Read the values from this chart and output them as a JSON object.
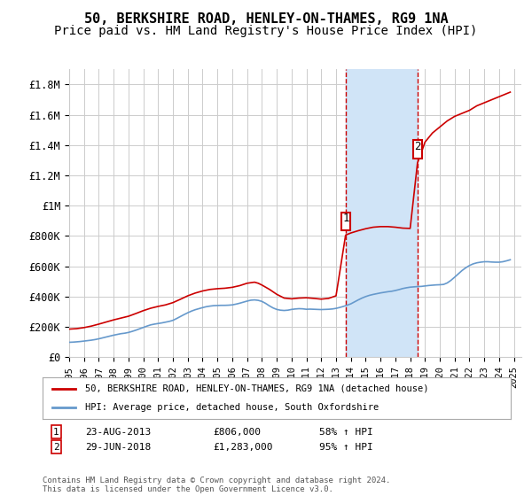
{
  "title": "50, BERKSHIRE ROAD, HENLEY-ON-THAMES, RG9 1NA",
  "subtitle": "Price paid vs. HM Land Registry's House Price Index (HPI)",
  "xlabel": "",
  "ylabel": "",
  "ylim": [
    0,
    1900000
  ],
  "xlim_start": 1995.0,
  "xlim_end": 2025.5,
  "yticks": [
    0,
    200000,
    400000,
    600000,
    800000,
    1000000,
    1200000,
    1400000,
    1600000,
    1800000
  ],
  "ytick_labels": [
    "£0",
    "£200K",
    "£400K",
    "£600K",
    "£800K",
    "£1M",
    "£1.2M",
    "£1.4M",
    "£1.6M",
    "£1.8M"
  ],
  "xticks": [
    1995,
    1996,
    1997,
    1998,
    1999,
    2000,
    2001,
    2002,
    2003,
    2004,
    2005,
    2006,
    2007,
    2008,
    2009,
    2010,
    2011,
    2012,
    2013,
    2014,
    2015,
    2016,
    2017,
    2018,
    2019,
    2020,
    2021,
    2022,
    2023,
    2024,
    2025
  ],
  "sale1_x": 2013.645,
  "sale1_y": 806000,
  "sale1_label": "1",
  "sale1_date": "23-AUG-2013",
  "sale1_price": "£806,000",
  "sale1_hpi": "58% ↑ HPI",
  "sale2_x": 2018.494,
  "sale2_y": 1283000,
  "sale2_label": "2",
  "sale2_date": "29-JUN-2018",
  "sale2_price": "£1,283,000",
  "sale2_hpi": "95% ↑ HPI",
  "red_line_color": "#cc0000",
  "blue_line_color": "#6699cc",
  "shade_color": "#d0e4f7",
  "grid_color": "#cccccc",
  "background_color": "#ffffff",
  "legend_line1": "50, BERKSHIRE ROAD, HENLEY-ON-THAMES, RG9 1NA (detached house)",
  "legend_line2": "HPI: Average price, detached house, South Oxfordshire",
  "footer": "Contains HM Land Registry data © Crown copyright and database right 2024.\nThis data is licensed under the Open Government Licence v3.0.",
  "hpi_years": [
    1995.0,
    1995.25,
    1995.5,
    1995.75,
    1996.0,
    1996.25,
    1996.5,
    1996.75,
    1997.0,
    1997.25,
    1997.5,
    1997.75,
    1998.0,
    1998.25,
    1998.5,
    1998.75,
    1999.0,
    1999.25,
    1999.5,
    1999.75,
    2000.0,
    2000.25,
    2000.5,
    2000.75,
    2001.0,
    2001.25,
    2001.5,
    2001.75,
    2002.0,
    2002.25,
    2002.5,
    2002.75,
    2003.0,
    2003.25,
    2003.5,
    2003.75,
    2004.0,
    2004.25,
    2004.5,
    2004.75,
    2005.0,
    2005.25,
    2005.5,
    2005.75,
    2006.0,
    2006.25,
    2006.5,
    2006.75,
    2007.0,
    2007.25,
    2007.5,
    2007.75,
    2008.0,
    2008.25,
    2008.5,
    2008.75,
    2009.0,
    2009.25,
    2009.5,
    2009.75,
    2010.0,
    2010.25,
    2010.5,
    2010.75,
    2011.0,
    2011.25,
    2011.5,
    2011.75,
    2012.0,
    2012.25,
    2012.5,
    2012.75,
    2013.0,
    2013.25,
    2013.5,
    2013.75,
    2014.0,
    2014.25,
    2014.5,
    2014.75,
    2015.0,
    2015.25,
    2015.5,
    2015.75,
    2016.0,
    2016.25,
    2016.5,
    2016.75,
    2017.0,
    2017.25,
    2017.5,
    2017.75,
    2018.0,
    2018.25,
    2018.5,
    2018.75,
    2019.0,
    2019.25,
    2019.5,
    2019.75,
    2020.0,
    2020.25,
    2020.5,
    2020.75,
    2021.0,
    2021.25,
    2021.5,
    2021.75,
    2022.0,
    2022.25,
    2022.5,
    2022.75,
    2023.0,
    2023.25,
    2023.5,
    2023.75,
    2024.0,
    2024.25,
    2024.5,
    2024.75
  ],
  "hpi_values": [
    98000,
    99000,
    101000,
    103000,
    106000,
    109000,
    112000,
    116000,
    121000,
    127000,
    133000,
    139000,
    145000,
    150000,
    155000,
    158000,
    163000,
    170000,
    178000,
    187000,
    196000,
    205000,
    213000,
    218000,
    222000,
    226000,
    231000,
    236000,
    243000,
    255000,
    268000,
    281000,
    293000,
    304000,
    313000,
    320000,
    327000,
    333000,
    337000,
    340000,
    341000,
    342000,
    342000,
    343000,
    345000,
    350000,
    356000,
    363000,
    370000,
    376000,
    378000,
    375000,
    368000,
    355000,
    339000,
    325000,
    315000,
    310000,
    308000,
    310000,
    315000,
    318000,
    320000,
    319000,
    316000,
    317000,
    316000,
    315000,
    314000,
    315000,
    316000,
    318000,
    322000,
    328000,
    335000,
    343000,
    352000,
    365000,
    378000,
    390000,
    400000,
    408000,
    414000,
    419000,
    424000,
    428000,
    432000,
    435000,
    440000,
    446000,
    453000,
    458000,
    462000,
    464000,
    466000,
    467000,
    470000,
    473000,
    475000,
    477000,
    478000,
    480000,
    490000,
    507000,
    528000,
    550000,
    572000,
    590000,
    605000,
    616000,
    623000,
    627000,
    630000,
    630000,
    628000,
    627000,
    627000,
    630000,
    636000,
    643000
  ],
  "red_years": [
    1995.0,
    1995.5,
    1996.0,
    1996.5,
    1997.0,
    1997.5,
    1998.0,
    1998.5,
    1999.0,
    1999.5,
    2000.0,
    2000.5,
    2001.0,
    2001.5,
    2002.0,
    2002.5,
    2003.0,
    2003.5,
    2004.0,
    2004.5,
    2005.0,
    2005.5,
    2006.0,
    2006.5,
    2007.0,
    2007.5,
    2007.75,
    2008.0,
    2008.5,
    2009.0,
    2009.5,
    2010.0,
    2010.5,
    2011.0,
    2011.5,
    2012.0,
    2012.5,
    2013.0,
    2013.645,
    2014.0,
    2014.5,
    2015.0,
    2015.5,
    2016.0,
    2016.5,
    2017.0,
    2017.5,
    2018.0,
    2018.494,
    2018.75,
    2019.0,
    2019.5,
    2020.0,
    2020.5,
    2021.0,
    2021.5,
    2022.0,
    2022.5,
    2023.0,
    2023.25,
    2023.5,
    2023.75,
    2024.0,
    2024.25,
    2024.5,
    2024.75
  ],
  "red_values": [
    185000,
    188000,
    195000,
    205000,
    218000,
    232000,
    246000,
    258000,
    270000,
    288000,
    307000,
    323000,
    335000,
    345000,
    360000,
    382000,
    405000,
    423000,
    437000,
    447000,
    452000,
    455000,
    461000,
    472000,
    488000,
    495000,
    488000,
    476000,
    448000,
    415000,
    390000,
    385000,
    390000,
    392000,
    388000,
    383000,
    388000,
    405000,
    806000,
    820000,
    835000,
    848000,
    858000,
    862000,
    862000,
    858000,
    852000,
    850000,
    1283000,
    1350000,
    1420000,
    1480000,
    1520000,
    1560000,
    1590000,
    1610000,
    1630000,
    1660000,
    1680000,
    1690000,
    1700000,
    1710000,
    1720000,
    1730000,
    1740000,
    1750000
  ],
  "title_fontsize": 11,
  "subtitle_fontsize": 10
}
